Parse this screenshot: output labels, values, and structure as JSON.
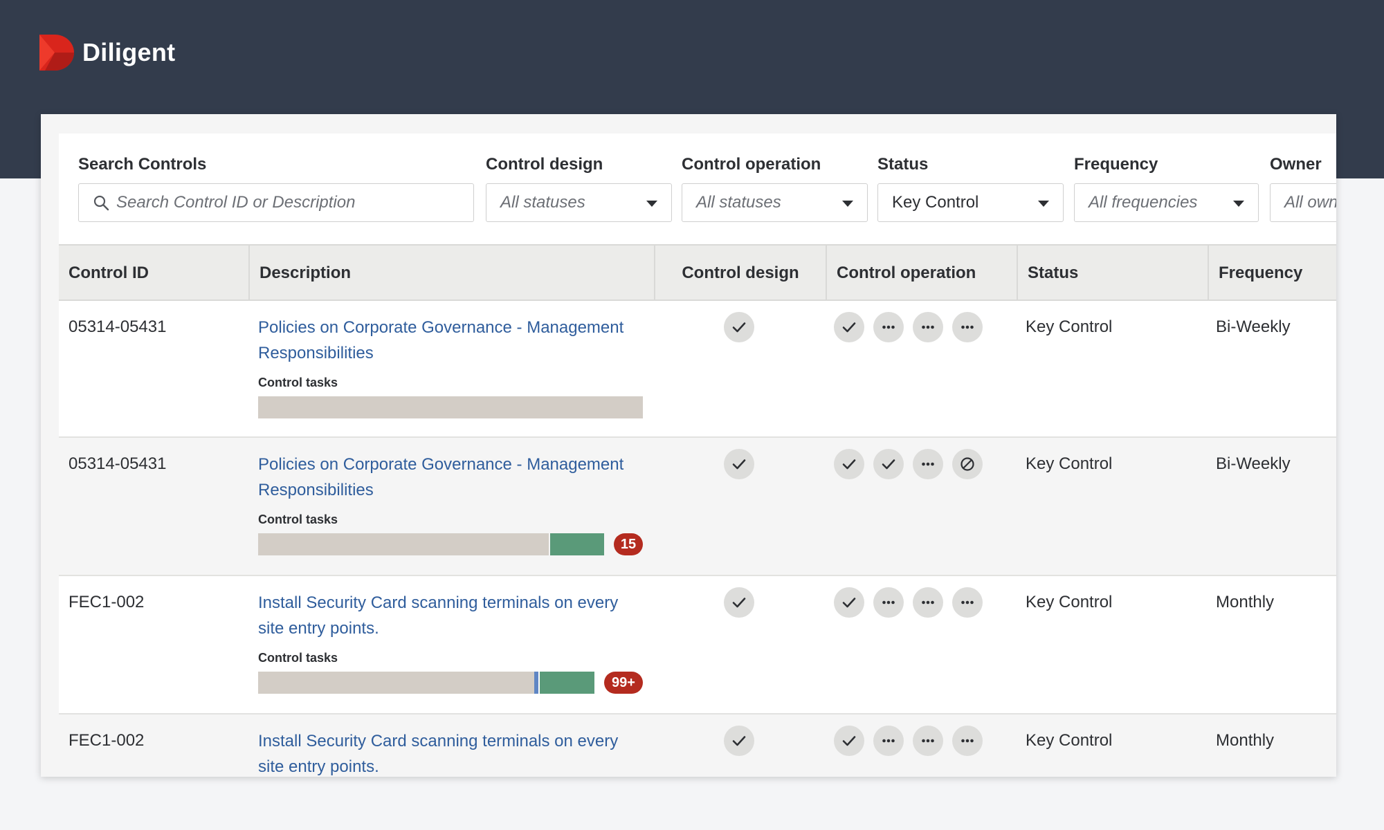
{
  "brand": {
    "name": "Diligent"
  },
  "filters": {
    "search": {
      "label": "Search Controls",
      "placeholder": "Search Control ID or Description"
    },
    "control_design": {
      "label": "Control design",
      "value": "All statuses"
    },
    "control_operation": {
      "label": "Control operation",
      "value": "All statuses"
    },
    "status": {
      "label": "Status",
      "value": "Key Control"
    },
    "frequency": {
      "label": "Frequency",
      "value": "All frequencies"
    },
    "owner": {
      "label": "Owner",
      "value": "All own"
    }
  },
  "columns": {
    "control_id": "Control ID",
    "description": "Description",
    "control_design": "Control design",
    "control_operation": "Control operation",
    "status": "Status",
    "frequency": "Frequency"
  },
  "tasks_label": "Control tasks",
  "rows": [
    {
      "id": "05314-05431",
      "description": "Policies on Corporate Governance - Management Responsibilities",
      "tasks_fill": 1.0,
      "badge": null,
      "design": "check",
      "operation": [
        "check",
        "more",
        "more",
        "more"
      ],
      "status": "Key Control",
      "frequency": "Bi-Weekly"
    },
    {
      "id": "05314-05431",
      "description": "Policies on Corporate Governance - Management Responsibilities",
      "tasks_fill": 0.84,
      "badge": "15",
      "design": "check",
      "operation": [
        "check",
        "check",
        "more",
        "blocked"
      ],
      "status": "Key Control",
      "frequency": "Bi-Weekly"
    },
    {
      "id": "FEC1-002",
      "description": "Install Security Card scanning terminals on every site entry points.",
      "tasks_fill": 0.82,
      "badge": "99+",
      "design": "check",
      "operation": [
        "check",
        "more",
        "more",
        "more"
      ],
      "status": "Key Control",
      "frequency": "Monthly"
    },
    {
      "id": "FEC1-002",
      "description": "Install Security Card scanning terminals on every site entry points.",
      "tasks_fill": null,
      "badge": null,
      "design": "check",
      "operation": [
        "check",
        "more",
        "more",
        "more"
      ],
      "status": "Key Control",
      "frequency": "Monthly"
    }
  ],
  "colors": {
    "header_bg": "#333c4c",
    "link": "#2f5d9c",
    "badge": "#b42b1f",
    "task_green": "#5a9a79",
    "task_blue": "#5f86c4",
    "task_grey": "#d3cdc6"
  }
}
